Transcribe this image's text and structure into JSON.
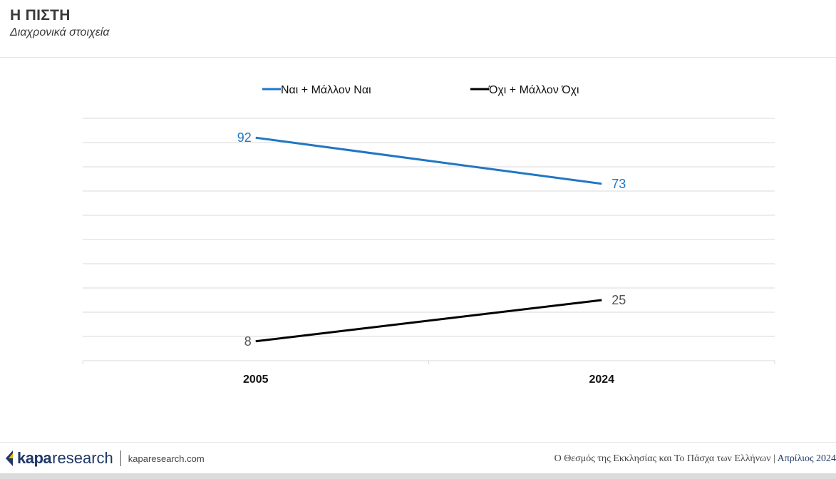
{
  "header": {
    "title": "Η ΠΙΣΤΗ",
    "subtitle": "Διαχρονικά στοιχεία"
  },
  "chart_data": {
    "type": "line",
    "x": [
      "2005",
      "2024"
    ],
    "ylim": [
      0,
      100
    ],
    "grid": true,
    "legend_position": "top",
    "series": [
      {
        "name": "Ναι + Μάλλον Ναι",
        "values": [
          92,
          73
        ],
        "color": "#1f77c4"
      },
      {
        "name": "Όχι + Μάλλον Όχι",
        "values": [
          8,
          25
        ],
        "color": "#000000"
      }
    ]
  },
  "colors": {
    "grid": "#d9d9d9",
    "brand": "#1f3866",
    "logo_accent": "#f2b705"
  },
  "footer": {
    "logo_bold": "kapa",
    "logo_light": "research",
    "url": "kaparesearch.com",
    "report_title": "Ο Θεσμός της Εκκλησίας και Το Πάσχα των Ελλήνων",
    "separator": "|",
    "date": "Απρίλιος 2024"
  }
}
